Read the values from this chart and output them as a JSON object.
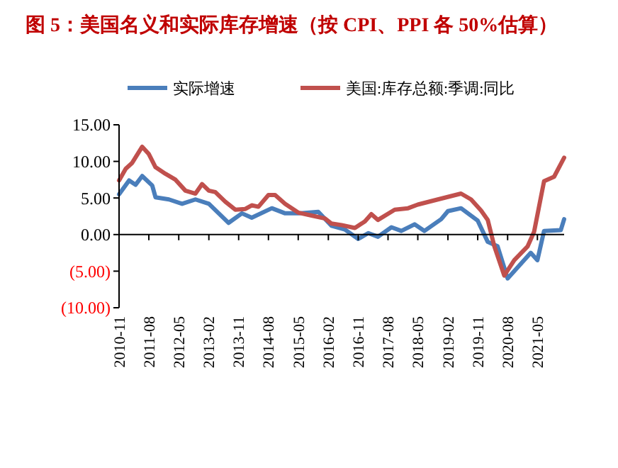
{
  "chart_data": {
    "type": "line",
    "title": "图  5：美国名义和实际库存增速（按 CPI、PPI 各 50%估算）",
    "legend": "top",
    "xlim": [
      "2010-11",
      "2022-01"
    ],
    "xticks": [
      "2010-11",
      "2011-08",
      "2012-05",
      "2013-02",
      "2013-11",
      "2014-08",
      "2015-05",
      "2016-02",
      "2016-11",
      "2017-08",
      "2018-05",
      "2019-02",
      "2019-11",
      "2020-08",
      "2021-05"
    ],
    "ylim": [
      -10,
      15
    ],
    "yticks": [
      {
        "value": -10,
        "label": "(10.00)"
      },
      {
        "value": -5,
        "label": "(5.00)"
      },
      {
        "value": 0,
        "label": "0.00"
      },
      {
        "value": 5,
        "label": "5.00"
      },
      {
        "value": 10,
        "label": "10.00"
      },
      {
        "value": 15,
        "label": "15.00"
      }
    ],
    "series": [
      {
        "name": "实际增速",
        "color": "#4a7ebb",
        "x": [
          "2010-11",
          "2011-02",
          "2011-04",
          "2011-06",
          "2011-09",
          "2011-10",
          "2012-02",
          "2012-06",
          "2012-10",
          "2013-02",
          "2013-08",
          "2013-12",
          "2014-03",
          "2014-09",
          "2015-01",
          "2015-05",
          "2015-11",
          "2016-03",
          "2016-07",
          "2016-11",
          "2017-02",
          "2017-05",
          "2017-09",
          "2017-12",
          "2018-04",
          "2018-07",
          "2018-12",
          "2019-02",
          "2019-06",
          "2019-11",
          "2020-02",
          "2020-05",
          "2020-08",
          "2021-03",
          "2021-05",
          "2021-07",
          "2021-12",
          "2022-01"
        ],
        "values": [
          5.5,
          7.4,
          6.8,
          8.0,
          6.7,
          5.1,
          4.8,
          4.2,
          4.8,
          4.2,
          1.6,
          2.9,
          2.3,
          3.6,
          2.9,
          2.9,
          3.1,
          1.2,
          0.7,
          -0.6,
          0.2,
          -0.3,
          1.0,
          0.5,
          1.4,
          0.5,
          2.1,
          3.2,
          3.6,
          1.9,
          -1.0,
          -1.6,
          -6.0,
          -2.5,
          -3.5,
          0.5,
          0.6,
          2.1
        ]
      },
      {
        "name": "美国:库存总额:季调:同比",
        "color": "#c0504d",
        "x": [
          "2010-11",
          "2011-01",
          "2011-03",
          "2011-06",
          "2011-08",
          "2011-10",
          "2012-01",
          "2012-04",
          "2012-07",
          "2012-10",
          "2012-12",
          "2013-02",
          "2013-04",
          "2013-07",
          "2013-10",
          "2014-01",
          "2014-03",
          "2014-05",
          "2014-08",
          "2014-10",
          "2015-01",
          "2015-05",
          "2015-09",
          "2016-01",
          "2016-03",
          "2016-06",
          "2016-10",
          "2017-01",
          "2017-03",
          "2017-05",
          "2017-10",
          "2018-02",
          "2018-05",
          "2018-11",
          "2019-06",
          "2019-09",
          "2019-12",
          "2020-02",
          "2020-04",
          "2020-07",
          "2020-10",
          "2021-02",
          "2021-04",
          "2021-07",
          "2021-10",
          "2022-01"
        ],
        "values": [
          7.4,
          9.0,
          9.8,
          12.0,
          11.0,
          9.2,
          8.3,
          7.5,
          6.0,
          5.6,
          6.9,
          6.0,
          5.8,
          4.5,
          3.4,
          3.5,
          4.0,
          3.8,
          5.4,
          5.4,
          4.2,
          3.0,
          2.6,
          2.2,
          1.5,
          1.3,
          0.9,
          1.8,
          2.8,
          2.0,
          3.4,
          3.6,
          4.1,
          4.8,
          5.6,
          4.8,
          3.3,
          2.0,
          -1.6,
          -5.6,
          -3.5,
          -1.6,
          0.4,
          7.3,
          7.9,
          10.5
        ]
      }
    ]
  }
}
